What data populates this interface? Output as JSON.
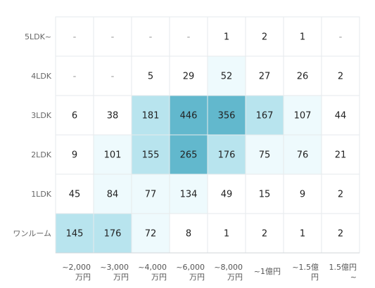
{
  "chart_data": {
    "type": "heatmap",
    "rows": [
      "5LDK~",
      "4LDK",
      "3LDK",
      "2LDK",
      "1LDK",
      "ワンルーム"
    ],
    "columns": [
      [
        "~2,000",
        "万円"
      ],
      [
        "~3,000",
        "万円"
      ],
      [
        "~4,000",
        "万円"
      ],
      [
        "~6,000",
        "万円"
      ],
      [
        "~8,000",
        "万円"
      ],
      [
        "~1億円"
      ],
      [
        "~1.5億",
        "円"
      ],
      [
        "1.5億円",
        "~"
      ]
    ],
    "values": [
      [
        null,
        null,
        null,
        null,
        1,
        2,
        1,
        null
      ],
      [
        null,
        null,
        5,
        29,
        52,
        27,
        26,
        2
      ],
      [
        6,
        38,
        181,
        446,
        356,
        167,
        107,
        44
      ],
      [
        9,
        101,
        155,
        265,
        176,
        75,
        76,
        21
      ],
      [
        45,
        84,
        77,
        134,
        49,
        15,
        9,
        2
      ],
      [
        145,
        176,
        72,
        8,
        1,
        2,
        1,
        2
      ]
    ],
    "empty_symbol": "-",
    "color_scale": {
      "low": "#ffffff",
      "light": "#eefafd",
      "mid": "#b8e4ee",
      "high": "#62b8cd"
    },
    "grid": true
  }
}
